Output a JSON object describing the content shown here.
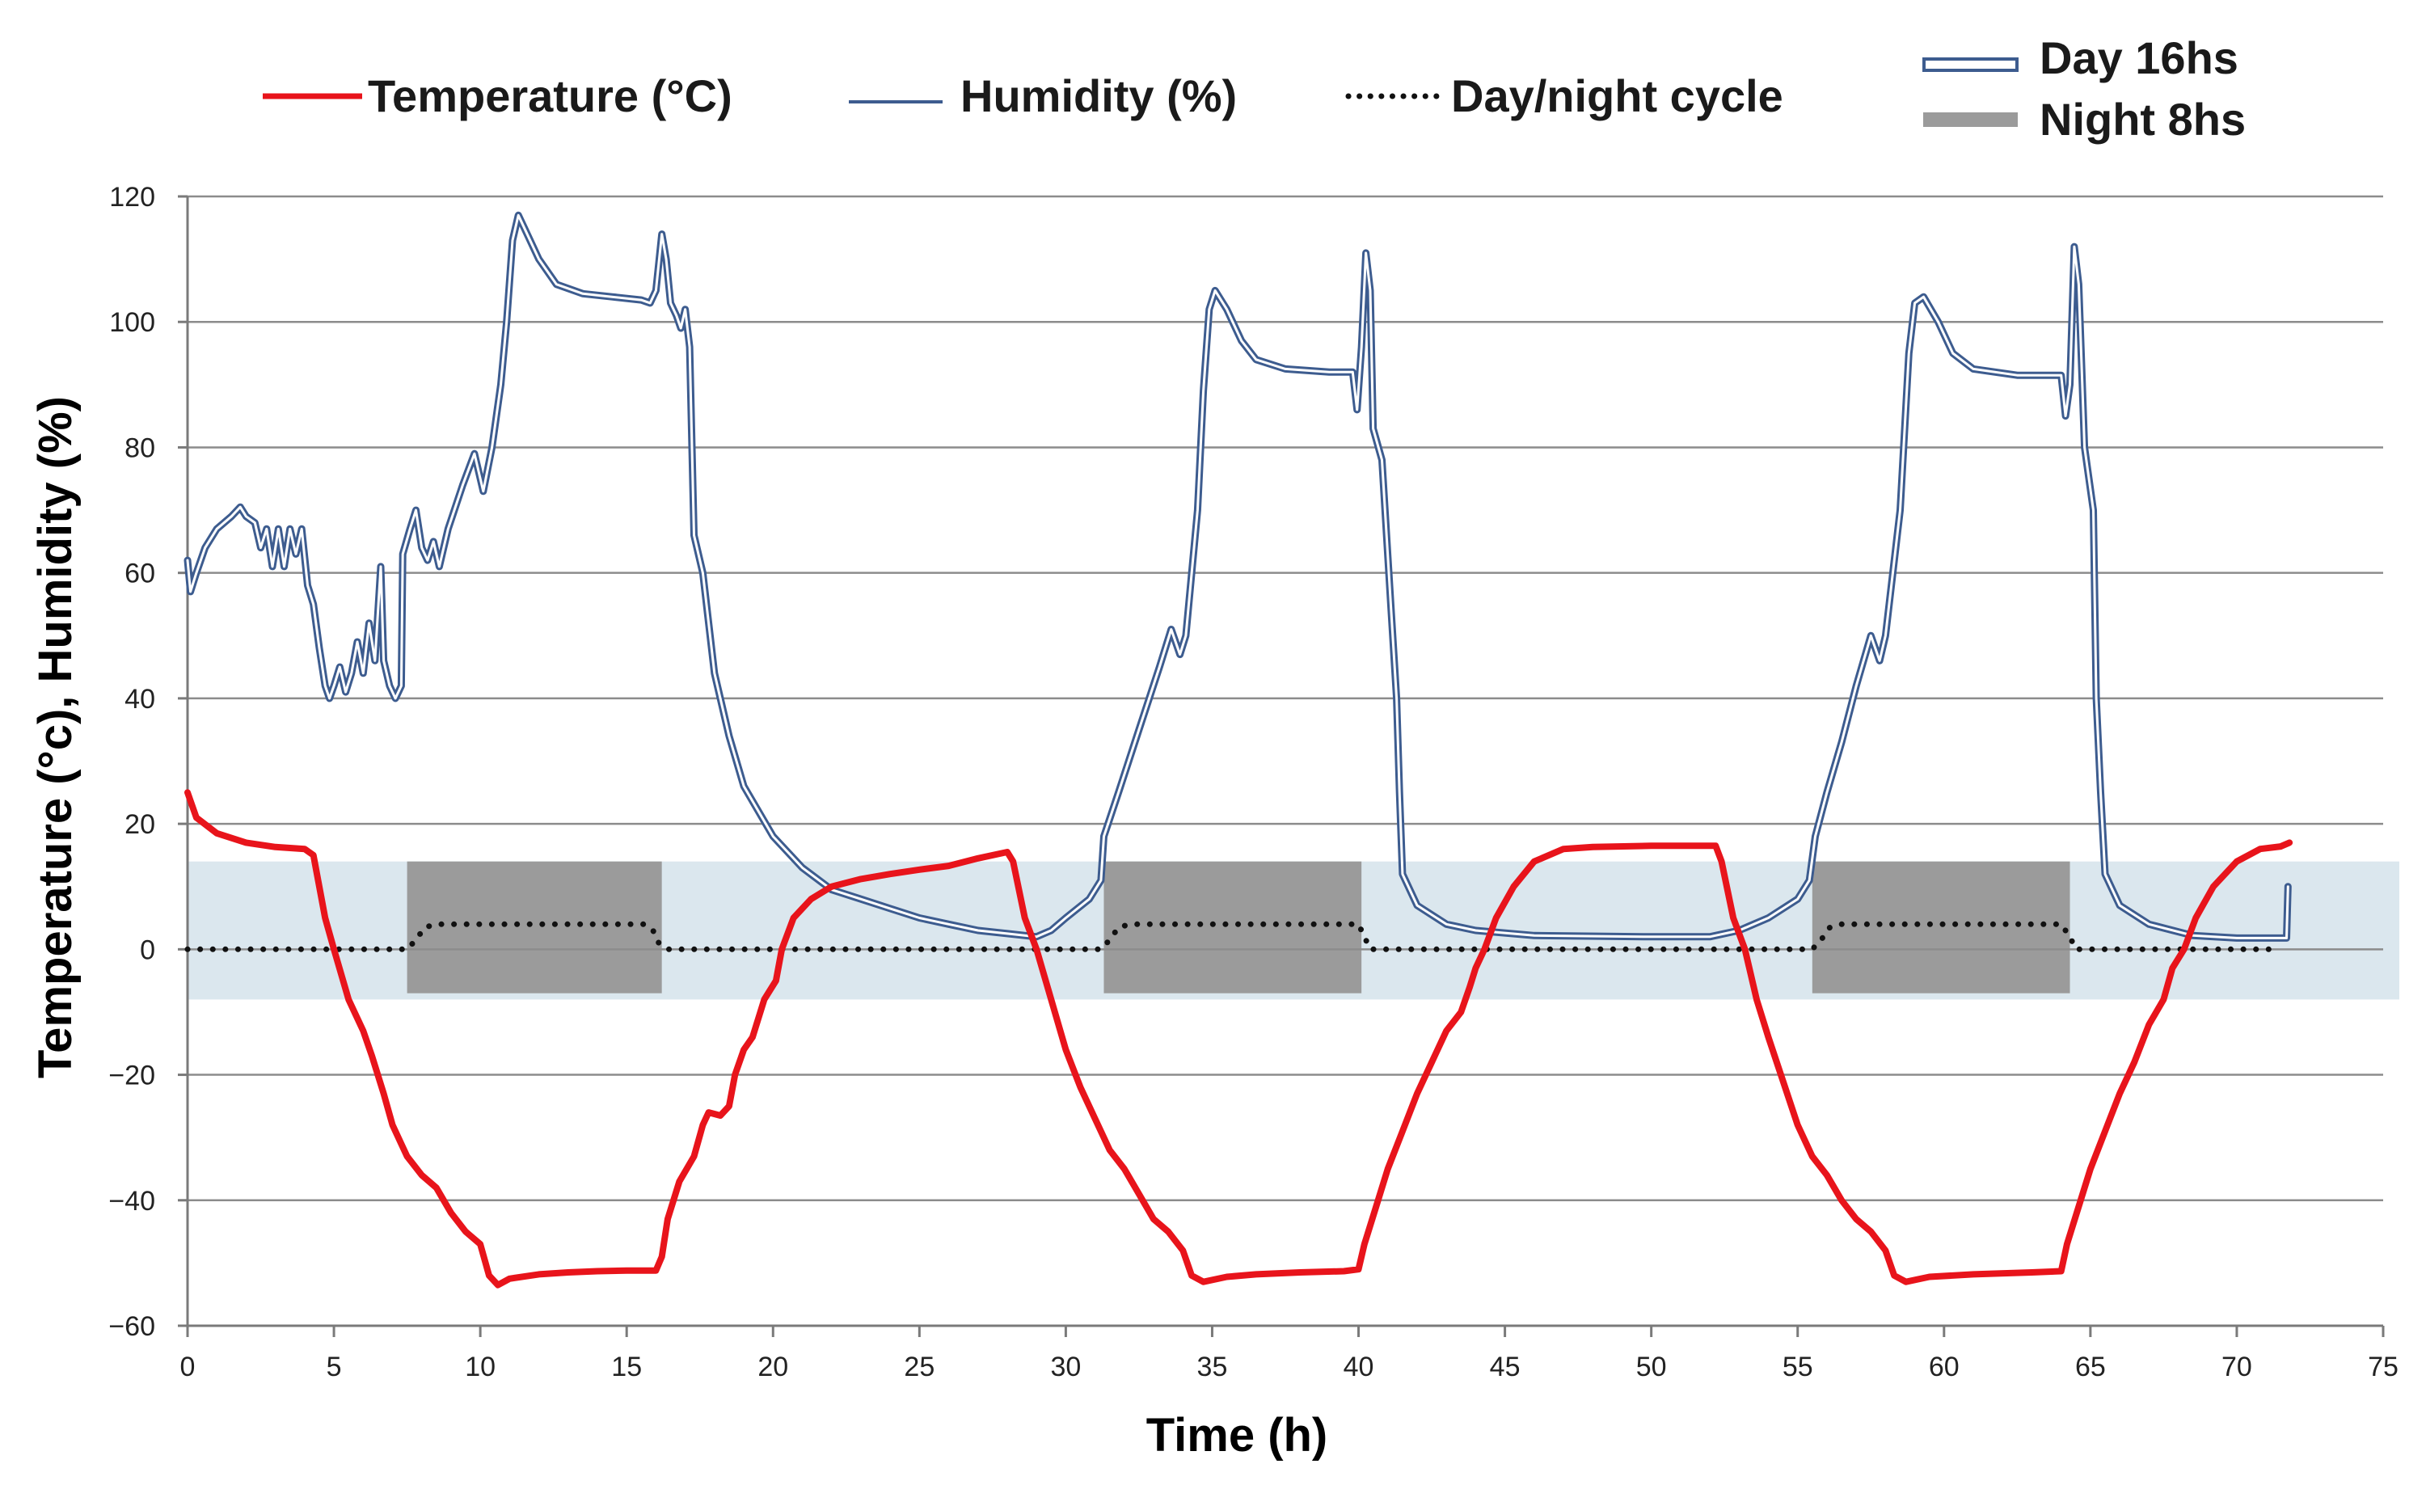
{
  "chart_data": {
    "type": "line",
    "title": "",
    "xlabel": "Time (h)",
    "ylabel": "Temperature (°c), Humidity (%)",
    "xlim": [
      0,
      75
    ],
    "ylim": [
      -60,
      120
    ],
    "xticks": [
      0,
      5,
      10,
      15,
      20,
      25,
      30,
      35,
      40,
      45,
      50,
      55,
      60,
      65,
      70,
      75
    ],
    "yticks": [
      -60,
      -40,
      -20,
      0,
      20,
      40,
      60,
      80,
      100,
      120
    ],
    "ytick_labels": [
      "−60",
      "−40",
      "−20",
      "0",
      "20",
      "40",
      "60",
      "80",
      "100",
      "120"
    ],
    "grid": "horizontal",
    "colors": {
      "temperature": "#e8141b",
      "humidity_outer": "#3d5c8f",
      "humidity_inner": "#ffffff",
      "cycle": "#111111",
      "day_band": "#dbe7ee",
      "night_box": "#9b9b9b",
      "grid": "#8c8c8c"
    },
    "legend": {
      "temperature": "Temperature (°C)",
      "humidity": "Humidity (%)",
      "cycle": "Day/night cycle",
      "day": "Day 16hs",
      "night": "Night 8hs"
    },
    "day_band_range": [
      -8,
      14
    ],
    "night_periods": [
      {
        "start": 7.5,
        "end": 16.2,
        "y_low": -7,
        "y_high": 14
      },
      {
        "start": 31.3,
        "end": 40.1,
        "y_low": -7,
        "y_high": 14
      },
      {
        "start": 55.5,
        "end": 64.3,
        "y_low": -7,
        "y_high": 14
      }
    ],
    "series": [
      {
        "name": "Temperature (°C)",
        "points": [
          [
            0,
            25
          ],
          [
            0.3,
            21
          ],
          [
            1,
            18.5
          ],
          [
            2,
            17
          ],
          [
            3,
            16.3
          ],
          [
            4,
            16
          ],
          [
            4.3,
            15
          ],
          [
            4.7,
            5
          ],
          [
            5,
            0
          ],
          [
            5.5,
            -8
          ],
          [
            6,
            -13
          ],
          [
            6.3,
            -17
          ],
          [
            6.7,
            -23
          ],
          [
            7,
            -28
          ],
          [
            7.5,
            -33
          ],
          [
            8,
            -36
          ],
          [
            8.5,
            -38
          ],
          [
            9,
            -42
          ],
          [
            9.5,
            -45
          ],
          [
            10,
            -47
          ],
          [
            10.3,
            -52
          ],
          [
            10.6,
            -53.5
          ],
          [
            11,
            -52.5
          ],
          [
            12,
            -51.8
          ],
          [
            13,
            -51.5
          ],
          [
            14,
            -51.3
          ],
          [
            15,
            -51.2
          ],
          [
            16,
            -51.2
          ],
          [
            16.2,
            -49
          ],
          [
            16.4,
            -43
          ],
          [
            16.8,
            -37
          ],
          [
            17.3,
            -33
          ],
          [
            17.6,
            -28
          ],
          [
            17.8,
            -26
          ],
          [
            18.2,
            -26.5
          ],
          [
            18.5,
            -25
          ],
          [
            18.7,
            -20
          ],
          [
            19,
            -16
          ],
          [
            19.3,
            -14
          ],
          [
            19.7,
            -8
          ],
          [
            20.1,
            -5
          ],
          [
            20.3,
            0
          ],
          [
            20.7,
            5
          ],
          [
            21.3,
            8
          ],
          [
            22,
            10
          ],
          [
            23,
            11.2
          ],
          [
            24,
            12
          ],
          [
            25,
            12.7
          ],
          [
            26,
            13.3
          ],
          [
            27,
            14.5
          ],
          [
            28,
            15.5
          ],
          [
            28.2,
            14
          ],
          [
            28.6,
            5
          ],
          [
            29,
            0
          ],
          [
            29.5,
            -8
          ],
          [
            30,
            -16
          ],
          [
            30.5,
            -22
          ],
          [
            31,
            -27
          ],
          [
            31.5,
            -32
          ],
          [
            32,
            -35
          ],
          [
            32.5,
            -39
          ],
          [
            33,
            -43
          ],
          [
            33.5,
            -45
          ],
          [
            34,
            -48
          ],
          [
            34.3,
            -52
          ],
          [
            34.7,
            -53
          ],
          [
            35.5,
            -52.2
          ],
          [
            36.5,
            -51.8
          ],
          [
            38,
            -51.5
          ],
          [
            39.5,
            -51.3
          ],
          [
            40,
            -51
          ],
          [
            40.2,
            -47
          ],
          [
            40.6,
            -41
          ],
          [
            41,
            -35
          ],
          [
            41.5,
            -29
          ],
          [
            42,
            -23
          ],
          [
            42.5,
            -18
          ],
          [
            43,
            -13
          ],
          [
            43.5,
            -10
          ],
          [
            43.8,
            -6
          ],
          [
            44,
            -3
          ],
          [
            44.3,
            0
          ],
          [
            44.7,
            5
          ],
          [
            45.3,
            10
          ],
          [
            46,
            14
          ],
          [
            47,
            16
          ],
          [
            48,
            16.3
          ],
          [
            50,
            16.5
          ],
          [
            52.2,
            16.5
          ],
          [
            52.4,
            14
          ],
          [
            52.8,
            5
          ],
          [
            53.2,
            0
          ],
          [
            53.6,
            -8
          ],
          [
            54,
            -14
          ],
          [
            54.5,
            -21
          ],
          [
            55,
            -28
          ],
          [
            55.5,
            -33
          ],
          [
            56,
            -36
          ],
          [
            56.5,
            -40
          ],
          [
            57,
            -43
          ],
          [
            57.5,
            -45
          ],
          [
            58,
            -48
          ],
          [
            58.3,
            -52
          ],
          [
            58.7,
            -53
          ],
          [
            59.5,
            -52.2
          ],
          [
            61,
            -51.8
          ],
          [
            63,
            -51.5
          ],
          [
            64,
            -51.3
          ],
          [
            64.2,
            -47
          ],
          [
            64.6,
            -41
          ],
          [
            65,
            -35
          ],
          [
            65.5,
            -29
          ],
          [
            66,
            -23
          ],
          [
            66.5,
            -18
          ],
          [
            67,
            -12
          ],
          [
            67.5,
            -8
          ],
          [
            67.8,
            -3
          ],
          [
            68.2,
            0
          ],
          [
            68.6,
            5
          ],
          [
            69.2,
            10
          ],
          [
            70,
            14
          ],
          [
            70.8,
            16
          ],
          [
            71.5,
            16.4
          ],
          [
            71.8,
            17
          ]
        ]
      },
      {
        "name": "Humidity (%)",
        "points": [
          [
            0,
            62
          ],
          [
            0.1,
            57
          ],
          [
            0.3,
            60
          ],
          [
            0.6,
            64
          ],
          [
            1,
            67
          ],
          [
            1.5,
            69
          ],
          [
            1.8,
            70.5
          ],
          [
            2,
            69
          ],
          [
            2.3,
            68
          ],
          [
            2.5,
            64
          ],
          [
            2.7,
            67
          ],
          [
            2.9,
            61
          ],
          [
            3.1,
            67
          ],
          [
            3.3,
            61
          ],
          [
            3.5,
            67
          ],
          [
            3.7,
            63
          ],
          [
            3.9,
            67
          ],
          [
            4.1,
            58
          ],
          [
            4.3,
            55
          ],
          [
            4.5,
            48
          ],
          [
            4.7,
            42
          ],
          [
            4.85,
            40
          ],
          [
            5,
            42
          ],
          [
            5.2,
            45
          ],
          [
            5.4,
            41
          ],
          [
            5.6,
            44
          ],
          [
            5.8,
            49
          ],
          [
            6,
            44
          ],
          [
            6.2,
            52
          ],
          [
            6.4,
            46
          ],
          [
            6.6,
            61
          ],
          [
            6.7,
            46
          ],
          [
            6.9,
            42
          ],
          [
            7.1,
            40
          ],
          [
            7.3,
            42
          ],
          [
            7.35,
            63
          ],
          [
            7.6,
            67
          ],
          [
            7.8,
            70
          ],
          [
            8,
            64
          ],
          [
            8.2,
            62
          ],
          [
            8.4,
            65
          ],
          [
            8.6,
            61
          ],
          [
            8.9,
            67
          ],
          [
            9.4,
            74
          ],
          [
            9.8,
            79
          ],
          [
            10.1,
            73
          ],
          [
            10.4,
            80
          ],
          [
            10.7,
            90
          ],
          [
            10.9,
            100
          ],
          [
            11.1,
            113
          ],
          [
            11.3,
            117
          ],
          [
            11.5,
            115
          ],
          [
            12,
            110
          ],
          [
            12.6,
            106
          ],
          [
            13.5,
            104.5
          ],
          [
            14.5,
            104
          ],
          [
            15.5,
            103.5
          ],
          [
            15.8,
            103
          ],
          [
            16,
            105
          ],
          [
            16.2,
            114
          ],
          [
            16.35,
            110
          ],
          [
            16.5,
            103
          ],
          [
            16.7,
            101
          ],
          [
            16.85,
            99
          ],
          [
            17,
            102
          ],
          [
            17.15,
            96
          ],
          [
            17.3,
            66
          ],
          [
            17.6,
            60
          ],
          [
            18,
            44
          ],
          [
            18.5,
            34
          ],
          [
            19,
            26
          ],
          [
            20,
            18
          ],
          [
            21,
            13
          ],
          [
            22,
            9.5
          ],
          [
            23,
            8
          ],
          [
            24,
            6.5
          ],
          [
            25,
            5
          ],
          [
            26,
            4
          ],
          [
            27,
            3
          ],
          [
            28,
            2.5
          ],
          [
            29,
            2
          ],
          [
            29.5,
            3
          ],
          [
            30,
            5
          ],
          [
            30.8,
            8
          ],
          [
            31.2,
            11
          ],
          [
            31.3,
            18
          ],
          [
            31.8,
            25
          ],
          [
            32.5,
            35
          ],
          [
            33.2,
            45
          ],
          [
            33.6,
            51
          ],
          [
            33.9,
            47
          ],
          [
            34.1,
            50
          ],
          [
            34.5,
            70
          ],
          [
            34.7,
            89
          ],
          [
            34.9,
            102
          ],
          [
            35.1,
            105
          ],
          [
            35.5,
            102
          ],
          [
            36,
            97
          ],
          [
            36.5,
            94
          ],
          [
            37.5,
            92.5
          ],
          [
            39,
            92
          ],
          [
            39.8,
            92
          ],
          [
            39.95,
            86
          ],
          [
            40.1,
            96
          ],
          [
            40.25,
            111
          ],
          [
            40.4,
            105
          ],
          [
            40.5,
            83
          ],
          [
            40.8,
            78
          ],
          [
            41.1,
            55
          ],
          [
            41.3,
            40
          ],
          [
            41.4,
            25
          ],
          [
            41.5,
            12
          ],
          [
            42,
            7
          ],
          [
            43,
            4
          ],
          [
            44,
            3
          ],
          [
            46,
            2.2
          ],
          [
            50,
            2
          ],
          [
            52,
            2
          ],
          [
            53,
            3
          ],
          [
            54,
            5
          ],
          [
            55,
            8
          ],
          [
            55.4,
            11
          ],
          [
            55.6,
            18
          ],
          [
            56,
            25
          ],
          [
            56.5,
            33
          ],
          [
            57,
            42
          ],
          [
            57.5,
            50
          ],
          [
            57.8,
            46
          ],
          [
            58,
            50
          ],
          [
            58.5,
            70
          ],
          [
            58.8,
            95
          ],
          [
            59,
            103
          ],
          [
            59.3,
            104
          ],
          [
            59.8,
            100
          ],
          [
            60.3,
            95
          ],
          [
            61,
            92.5
          ],
          [
            62.5,
            91.5
          ],
          [
            64,
            91.5
          ],
          [
            64.15,
            85
          ],
          [
            64.3,
            90
          ],
          [
            64.45,
            112
          ],
          [
            64.6,
            106
          ],
          [
            64.8,
            80
          ],
          [
            65.1,
            70
          ],
          [
            65.2,
            40
          ],
          [
            65.35,
            25
          ],
          [
            65.5,
            12
          ],
          [
            66,
            7
          ],
          [
            67,
            4
          ],
          [
            68.5,
            2.2
          ],
          [
            70,
            1.8
          ],
          [
            71.7,
            1.8
          ],
          [
            71.75,
            10
          ]
        ]
      },
      {
        "name": "Day/night cycle",
        "points": [
          [
            0,
            0
          ],
          [
            7.5,
            0
          ],
          [
            7.8,
            1.5
          ],
          [
            8.1,
            3.5
          ],
          [
            8.5,
            4
          ],
          [
            15.6,
            4
          ],
          [
            15.9,
            3
          ],
          [
            16.1,
            1
          ],
          [
            16.4,
            0
          ],
          [
            31.2,
            0
          ],
          [
            31.5,
            1.5
          ],
          [
            31.8,
            3.5
          ],
          [
            32.2,
            4
          ],
          [
            40,
            4
          ],
          [
            40.2,
            2
          ],
          [
            40.4,
            0
          ],
          [
            55.5,
            0
          ],
          [
            55.8,
            1.5
          ],
          [
            56.1,
            3.5
          ],
          [
            56.5,
            4
          ],
          [
            64,
            4
          ],
          [
            64.3,
            2
          ],
          [
            64.5,
            0
          ],
          [
            71.5,
            0
          ]
        ]
      }
    ]
  }
}
